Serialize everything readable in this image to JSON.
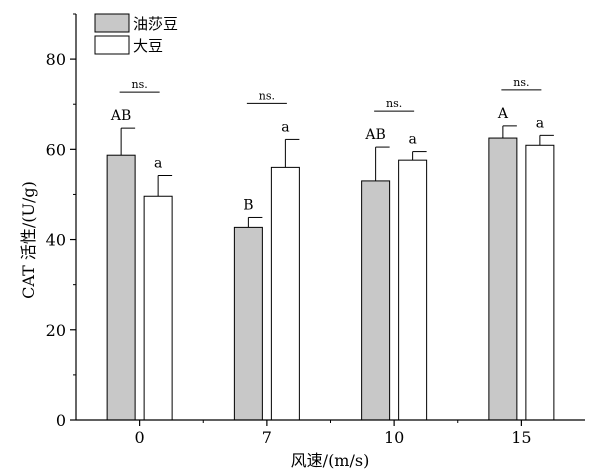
{
  "chart_data": {
    "type": "bar",
    "title": "",
    "xlabel": "风速/(m/s)",
    "ylabel": "CAT 活性/(U/g)",
    "categories": [
      "0",
      "7",
      "10",
      "15"
    ],
    "ylim": [
      0,
      90
    ],
    "yticks": [
      0,
      20,
      40,
      60,
      80
    ],
    "grid": false,
    "legend_position": "top-left",
    "series": [
      {
        "name": "油莎豆",
        "color": "#c8c8c8",
        "values": [
          58.7,
          42.7,
          53.0,
          62.5
        ],
        "errors": [
          6.0,
          2.2,
          7.5,
          2.7
        ],
        "letters": [
          "AB",
          "B",
          "AB",
          "A"
        ]
      },
      {
        "name": "大豆",
        "color": "#ffffff",
        "values": [
          49.6,
          56.0,
          57.6,
          60.9
        ],
        "errors": [
          4.6,
          6.2,
          1.9,
          2.2
        ],
        "letters": [
          "a",
          "a",
          "a",
          "a"
        ]
      }
    ],
    "between_group_labels": [
      "ns.",
      "ns.",
      "ns.",
      "ns."
    ]
  }
}
